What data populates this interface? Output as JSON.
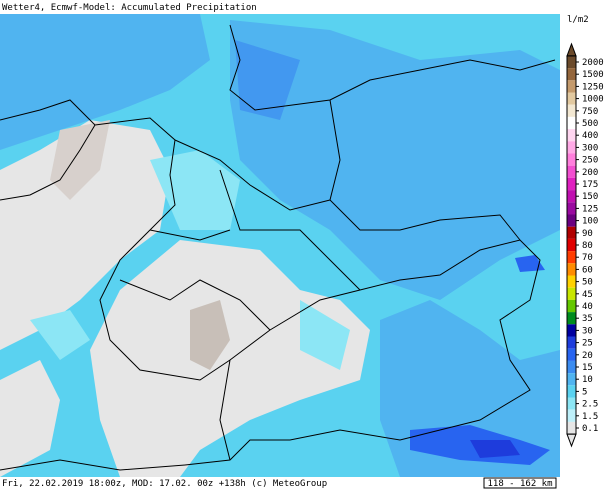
{
  "header": {
    "title": "Wetter4, Ecmwf-Model: Accumulated Precipitation"
  },
  "legend": {
    "unit": "l/m2",
    "items": [
      {
        "label": "2000",
        "color": "#6b4a2b"
      },
      {
        "label": "1500",
        "color": "#94663c"
      },
      {
        "label": "1250",
        "color": "#c49a6c"
      },
      {
        "label": "1000",
        "color": "#e2c9a0"
      },
      {
        "label": "750",
        "color": "#f3e8d2"
      },
      {
        "label": "500",
        "color": "#ffffff"
      },
      {
        "label": "400",
        "color": "#ffd6f0"
      },
      {
        "label": "300",
        "color": "#ffaae6"
      },
      {
        "label": "250",
        "color": "#ff7fdc"
      },
      {
        "label": "200",
        "color": "#f24fd0"
      },
      {
        "label": "175",
        "color": "#e020c0"
      },
      {
        "label": "150",
        "color": "#c010b0"
      },
      {
        "label": "125",
        "color": "#9a0aa0"
      },
      {
        "label": "100",
        "color": "#6a0080"
      },
      {
        "label": "90",
        "color": "#b00000"
      },
      {
        "label": "80",
        "color": "#e00000"
      },
      {
        "label": "70",
        "color": "#ff3c00"
      },
      {
        "label": "60",
        "color": "#ff8c00"
      },
      {
        "label": "50",
        "color": "#ffd200"
      },
      {
        "label": "45",
        "color": "#c8e600"
      },
      {
        "label": "40",
        "color": "#64c800"
      },
      {
        "label": "35",
        "color": "#008c1e"
      },
      {
        "label": "30",
        "color": "#0000a0"
      },
      {
        "label": "25",
        "color": "#1e3cdc"
      },
      {
        "label": "20",
        "color": "#2864f0"
      },
      {
        "label": "15",
        "color": "#3c8cf0"
      },
      {
        "label": "10",
        "color": "#50b4f0"
      },
      {
        "label": "5",
        "color": "#5ad2f0"
      },
      {
        "label": "2.5",
        "color": "#8ce6f5"
      },
      {
        "label": "1.5",
        "color": "#bef0fa"
      },
      {
        "label": "0.1",
        "color": "#e6e6e6"
      }
    ]
  },
  "footer": {
    "info": "Fri, 22.02.2019 18:00z, MOD: 17.02. 00z +138h (c) MeteoGroup",
    "scale": "118 - 162 km"
  }
}
